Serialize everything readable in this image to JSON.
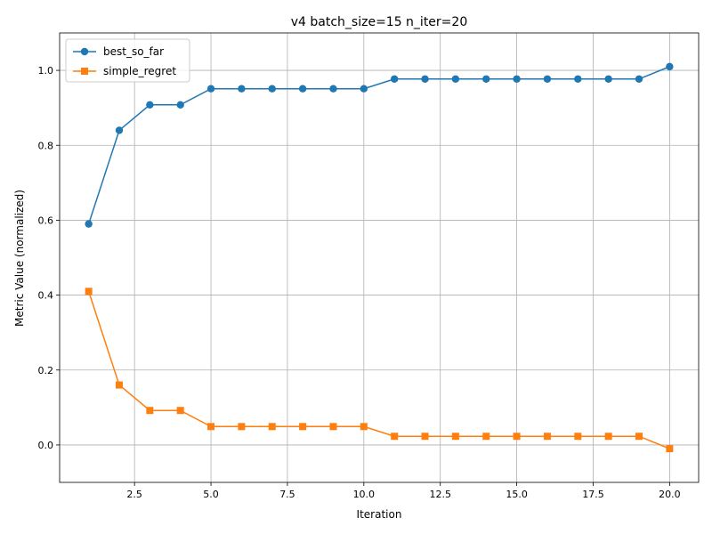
{
  "chart_data": {
    "type": "line",
    "title": "v4 batch_size=15 n_iter=20",
    "xlabel": "Iteration",
    "ylabel": "Metric Value (normalized)",
    "x": [
      1,
      2,
      3,
      4,
      5,
      6,
      7,
      8,
      9,
      10,
      11,
      12,
      13,
      14,
      15,
      16,
      17,
      18,
      19,
      20
    ],
    "xlim": [
      0.05,
      20.95
    ],
    "ylim": [
      -0.1,
      1.1
    ],
    "xticks": [
      "2.5",
      "5.0",
      "7.5",
      "10.0",
      "12.5",
      "15.0",
      "17.5",
      "20.0"
    ],
    "yticks": [
      "0.0",
      "0.2",
      "0.4",
      "0.6",
      "0.8",
      "1.0"
    ],
    "grid": true,
    "legend_position": "top-left",
    "series": [
      {
        "name": "best_so_far",
        "color": "#1f77b4",
        "marker": "circle",
        "values": [
          0.59,
          0.84,
          0.908,
          0.908,
          0.951,
          0.951,
          0.951,
          0.951,
          0.951,
          0.951,
          0.977,
          0.977,
          0.977,
          0.977,
          0.977,
          0.977,
          0.977,
          0.977,
          0.977,
          1.01
        ]
      },
      {
        "name": "simple_regret",
        "color": "#ff7f0e",
        "marker": "square",
        "values": [
          0.41,
          0.16,
          0.092,
          0.092,
          0.049,
          0.049,
          0.049,
          0.049,
          0.049,
          0.049,
          0.023,
          0.023,
          0.023,
          0.023,
          0.023,
          0.023,
          0.023,
          0.023,
          0.023,
          -0.01
        ]
      }
    ]
  }
}
